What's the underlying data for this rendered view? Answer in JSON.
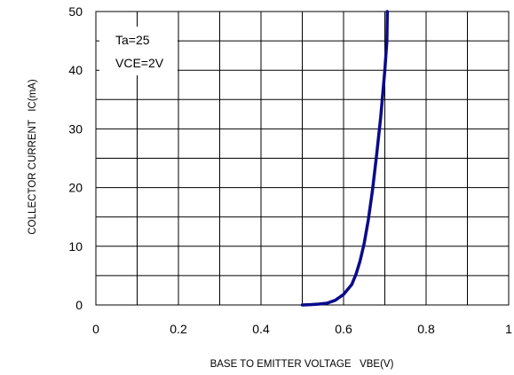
{
  "chart_data": {
    "type": "line",
    "title": "",
    "xlabel": "BASE TO EMITTER VOLTAGE   VBE(V)",
    "ylabel": "COLLECTOR CURRENT   IC(mA)",
    "xlim": [
      0,
      1
    ],
    "ylim": [
      0,
      50
    ],
    "x_ticks": [
      0,
      0.1,
      0.2,
      0.3,
      0.4,
      0.5,
      0.6,
      0.7,
      0.8,
      0.9,
      1.0
    ],
    "x_tick_labels": [
      "0",
      "",
      "0.2",
      "",
      "0.4",
      "",
      "0.6",
      "",
      "0.8",
      "",
      "1"
    ],
    "y_ticks": [
      0,
      5,
      10,
      15,
      20,
      25,
      30,
      35,
      40,
      45,
      50
    ],
    "y_tick_labels": [
      "0",
      "",
      "10",
      "",
      "20",
      "",
      "30",
      "",
      "40",
      "",
      "50"
    ],
    "grid": true,
    "annotations": [
      "Ta=25",
      "VCE=2V"
    ],
    "line_color": "#0a0a8a",
    "series": [
      {
        "x": [
          0.5,
          0.52,
          0.54,
          0.56,
          0.58,
          0.6,
          0.62,
          0.63,
          0.64,
          0.65,
          0.66,
          0.67,
          0.68,
          0.69,
          0.7,
          0.705,
          0.706
        ],
        "y": [
          0,
          0.05,
          0.15,
          0.3,
          0.8,
          1.8,
          3.5,
          5.2,
          7.5,
          10.5,
          14.5,
          19.5,
          25.5,
          32.0,
          40.0,
          45.0,
          50.0
        ]
      }
    ]
  }
}
